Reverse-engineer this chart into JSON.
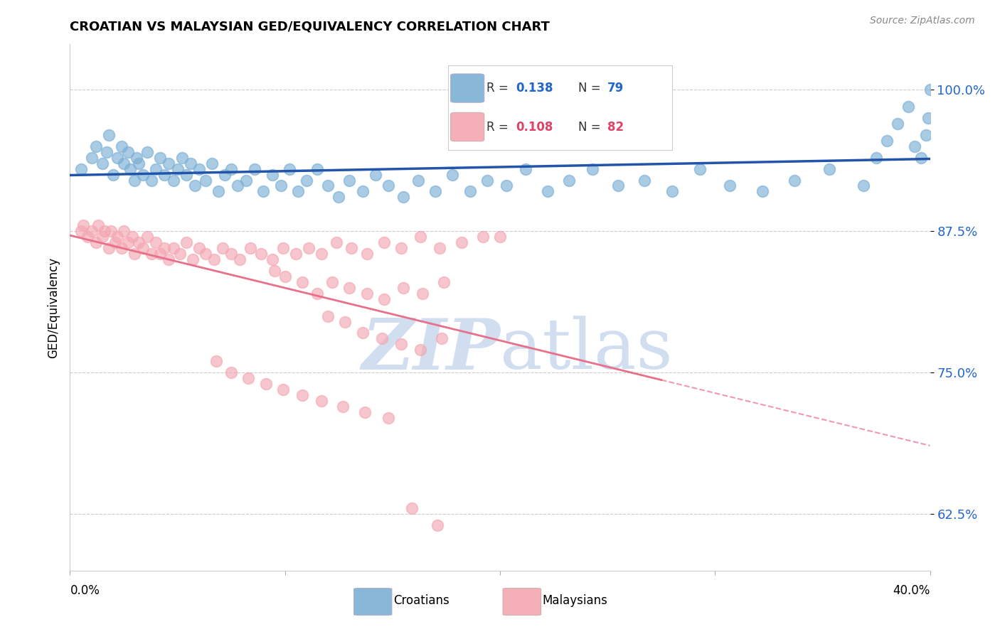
{
  "title": "CROATIAN VS MALAYSIAN GED/EQUIVALENCY CORRELATION CHART",
  "source": "Source: ZipAtlas.com",
  "ylabel": "GED/Equivalency",
  "ytick_values": [
    0.625,
    0.75,
    0.875,
    1.0
  ],
  "xlim": [
    0.0,
    0.4
  ],
  "ylim": [
    0.575,
    1.04
  ],
  "legend_blue_r": "0.138",
  "legend_blue_n": "79",
  "legend_pink_r": "0.108",
  "legend_pink_n": "82",
  "blue_color": "#7BAFD4",
  "pink_color": "#F4A7B2",
  "blue_line_color": "#2255AA",
  "pink_line_color": "#E8708A",
  "watermark_color": "#D0DEF0",
  "croatian_x": [
    0.005,
    0.01,
    0.012,
    0.015,
    0.017,
    0.018,
    0.02,
    0.022,
    0.024,
    0.025,
    0.027,
    0.028,
    0.03,
    0.031,
    0.032,
    0.034,
    0.036,
    0.038,
    0.04,
    0.042,
    0.044,
    0.046,
    0.048,
    0.05,
    0.052,
    0.054,
    0.056,
    0.058,
    0.06,
    0.063,
    0.066,
    0.069,
    0.072,
    0.075,
    0.078,
    0.082,
    0.086,
    0.09,
    0.094,
    0.098,
    0.102,
    0.106,
    0.11,
    0.115,
    0.12,
    0.125,
    0.13,
    0.136,
    0.142,
    0.148,
    0.155,
    0.162,
    0.17,
    0.178,
    0.186,
    0.194,
    0.203,
    0.212,
    0.222,
    0.232,
    0.243,
    0.255,
    0.267,
    0.28,
    0.293,
    0.307,
    0.322,
    0.337,
    0.353,
    0.369,
    0.375,
    0.38,
    0.385,
    0.39,
    0.393,
    0.396,
    0.398,
    0.399,
    0.4
  ],
  "croatian_y": [
    0.93,
    0.94,
    0.95,
    0.935,
    0.945,
    0.96,
    0.925,
    0.94,
    0.95,
    0.935,
    0.945,
    0.93,
    0.92,
    0.94,
    0.935,
    0.925,
    0.945,
    0.92,
    0.93,
    0.94,
    0.925,
    0.935,
    0.92,
    0.93,
    0.94,
    0.925,
    0.935,
    0.915,
    0.93,
    0.92,
    0.935,
    0.91,
    0.925,
    0.93,
    0.915,
    0.92,
    0.93,
    0.91,
    0.925,
    0.915,
    0.93,
    0.91,
    0.92,
    0.93,
    0.915,
    0.905,
    0.92,
    0.91,
    0.925,
    0.915,
    0.905,
    0.92,
    0.91,
    0.925,
    0.91,
    0.92,
    0.915,
    0.93,
    0.91,
    0.92,
    0.93,
    0.915,
    0.92,
    0.91,
    0.93,
    0.915,
    0.91,
    0.92,
    0.93,
    0.915,
    0.94,
    0.955,
    0.97,
    0.985,
    0.95,
    0.94,
    0.96,
    0.975,
    1.0
  ],
  "malaysian_x": [
    0.005,
    0.006,
    0.008,
    0.01,
    0.012,
    0.013,
    0.015,
    0.016,
    0.018,
    0.019,
    0.021,
    0.022,
    0.024,
    0.025,
    0.027,
    0.029,
    0.03,
    0.032,
    0.034,
    0.036,
    0.038,
    0.04,
    0.042,
    0.044,
    0.046,
    0.048,
    0.051,
    0.054,
    0.057,
    0.06,
    0.063,
    0.067,
    0.071,
    0.075,
    0.079,
    0.084,
    0.089,
    0.094,
    0.099,
    0.105,
    0.111,
    0.117,
    0.124,
    0.131,
    0.138,
    0.146,
    0.154,
    0.163,
    0.172,
    0.182,
    0.192,
    0.095,
    0.1,
    0.108,
    0.115,
    0.122,
    0.13,
    0.138,
    0.146,
    0.155,
    0.164,
    0.174,
    0.12,
    0.128,
    0.136,
    0.145,
    0.154,
    0.163,
    0.173,
    0.2,
    0.068,
    0.075,
    0.083,
    0.091,
    0.099,
    0.108,
    0.117,
    0.127,
    0.137,
    0.148,
    0.159,
    0.171
  ],
  "malaysian_y": [
    0.875,
    0.88,
    0.87,
    0.875,
    0.865,
    0.88,
    0.87,
    0.875,
    0.86,
    0.875,
    0.865,
    0.87,
    0.86,
    0.875,
    0.865,
    0.87,
    0.855,
    0.865,
    0.86,
    0.87,
    0.855,
    0.865,
    0.855,
    0.86,
    0.85,
    0.86,
    0.855,
    0.865,
    0.85,
    0.86,
    0.855,
    0.85,
    0.86,
    0.855,
    0.85,
    0.86,
    0.855,
    0.85,
    0.86,
    0.855,
    0.86,
    0.855,
    0.865,
    0.86,
    0.855,
    0.865,
    0.86,
    0.87,
    0.86,
    0.865,
    0.87,
    0.84,
    0.835,
    0.83,
    0.82,
    0.83,
    0.825,
    0.82,
    0.815,
    0.825,
    0.82,
    0.83,
    0.8,
    0.795,
    0.785,
    0.78,
    0.775,
    0.77,
    0.78,
    0.87,
    0.76,
    0.75,
    0.745,
    0.74,
    0.735,
    0.73,
    0.725,
    0.72,
    0.715,
    0.71,
    0.63,
    0.615
  ]
}
